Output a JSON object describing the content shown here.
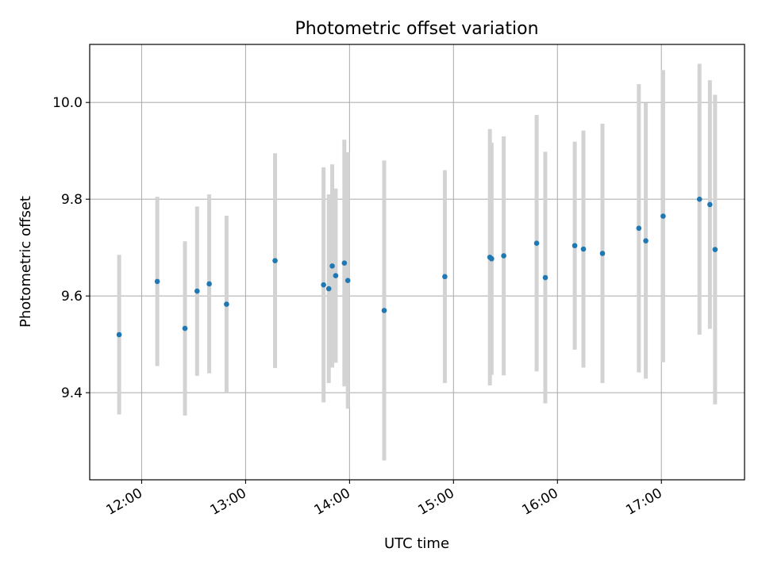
{
  "chart_data": {
    "type": "scatter",
    "title": "Photometric offset variation",
    "xlabel": "UTC time",
    "ylabel": "Photometric offset",
    "xlim": [
      "11:30:00",
      "17:48:00"
    ],
    "ylim": [
      9.22,
      10.12
    ],
    "x_ticks": [
      "12:00",
      "13:00",
      "14:00",
      "15:00",
      "16:00",
      "17:00"
    ],
    "y_ticks": [
      "9.4",
      "9.6",
      "9.8",
      "10.0"
    ],
    "grid": true,
    "colors": {
      "points": "#1f77b4",
      "errorbars": "#d3d3d3",
      "grid": "#b0b0b0"
    },
    "points": [
      {
        "x": "11:47:00",
        "y": 9.52,
        "err": 0.165
      },
      {
        "x": "12:09:00",
        "y": 9.63,
        "err": 0.175
      },
      {
        "x": "12:25:00",
        "y": 9.533,
        "err": 0.18
      },
      {
        "x": "12:32:00",
        "y": 9.61,
        "err": 0.175
      },
      {
        "x": "12:39:00",
        "y": 9.625,
        "err": 0.185
      },
      {
        "x": "12:49:00",
        "y": 9.583,
        "err": 0.183
      },
      {
        "x": "13:17:00",
        "y": 9.673,
        "err": 0.222
      },
      {
        "x": "13:45:00",
        "y": 9.623,
        "err": 0.243
      },
      {
        "x": "13:48:00",
        "y": 9.615,
        "err": 0.195
      },
      {
        "x": "13:50:00",
        "y": 9.662,
        "err": 0.21
      },
      {
        "x": "13:52:00",
        "y": 9.642,
        "err": 0.18
      },
      {
        "x": "13:57:00",
        "y": 9.668,
        "err": 0.255
      },
      {
        "x": "13:59:00",
        "y": 9.632,
        "err": 0.265
      },
      {
        "x": "14:20:00",
        "y": 9.57,
        "err": 0.31
      },
      {
        "x": "14:55:00",
        "y": 9.64,
        "err": 0.22
      },
      {
        "x": "15:21:00",
        "y": 9.68,
        "err": 0.265
      },
      {
        "x": "15:22:00",
        "y": 9.677,
        "err": 0.24
      },
      {
        "x": "15:29:00",
        "y": 9.683,
        "err": 0.247
      },
      {
        "x": "15:48:00",
        "y": 9.709,
        "err": 0.265
      },
      {
        "x": "15:53:00",
        "y": 9.638,
        "err": 0.26
      },
      {
        "x": "16:10:00",
        "y": 9.704,
        "err": 0.215
      },
      {
        "x": "16:15:00",
        "y": 9.697,
        "err": 0.245
      },
      {
        "x": "16:26:00",
        "y": 9.688,
        "err": 0.268
      },
      {
        "x": "16:47:00",
        "y": 9.74,
        "err": 0.298
      },
      {
        "x": "16:51:00",
        "y": 9.714,
        "err": 0.285
      },
      {
        "x": "17:01:00",
        "y": 9.765,
        "err": 0.302
      },
      {
        "x": "17:22:00",
        "y": 9.8,
        "err": 0.28
      },
      {
        "x": "17:28:00",
        "y": 9.789,
        "err": 0.257
      },
      {
        "x": "17:31:00",
        "y": 9.696,
        "err": 0.32
      }
    ]
  }
}
